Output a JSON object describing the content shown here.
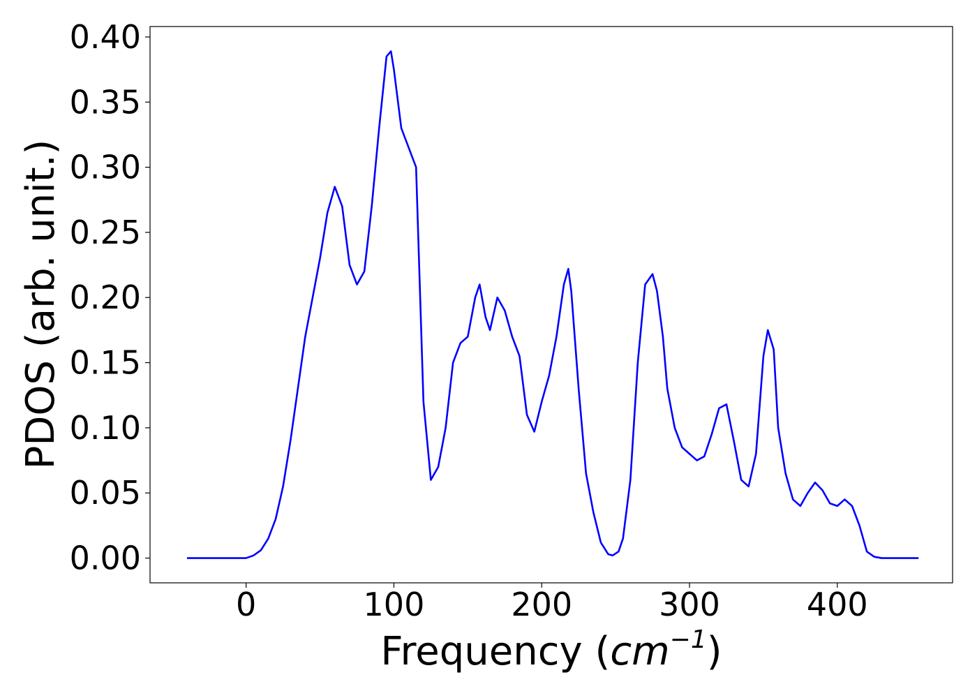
{
  "chart_data": {
    "type": "line",
    "title": "",
    "xlabel": {
      "prefix": "Frequency (",
      "var": "cm",
      "exp": "−1",
      "suffix": ")"
    },
    "ylabel": "PDOS (arb. unit.)",
    "xlim": [
      -65,
      478
    ],
    "ylim": [
      -0.019,
      0.408
    ],
    "xticks": [
      0,
      100,
      200,
      300,
      400
    ],
    "xtick_labels": [
      "0",
      "100",
      "200",
      "300",
      "400"
    ],
    "yticks": [
      0.0,
      0.05,
      0.1,
      0.15,
      0.2,
      0.25,
      0.3,
      0.35,
      0.4
    ],
    "ytick_labels": [
      "0.00",
      "0.05",
      "0.10",
      "0.15",
      "0.20",
      "0.25",
      "0.30",
      "0.35",
      "0.40"
    ],
    "grid": false,
    "legend": "none",
    "line_color": "#0000ff",
    "series": [
      {
        "x": [
          -40,
          -20,
          0,
          5,
          10,
          15,
          20,
          25,
          30,
          35,
          40,
          45,
          50,
          55,
          60,
          65,
          70,
          75,
          80,
          85,
          90,
          95,
          98,
          100,
          105,
          110,
          115,
          120,
          125,
          130,
          135,
          140,
          145,
          150,
          155,
          158,
          162,
          165,
          170,
          175,
          180,
          185,
          190,
          195,
          200,
          205,
          210,
          215,
          218,
          220,
          225,
          230,
          235,
          240,
          245,
          248,
          252,
          255,
          260,
          265,
          270,
          275,
          278,
          282,
          285,
          290,
          295,
          300,
          305,
          310,
          315,
          320,
          325,
          330,
          335,
          340,
          345,
          350,
          353,
          357,
          360,
          365,
          370,
          375,
          380,
          385,
          390,
          395,
          400,
          405,
          410,
          415,
          420,
          425,
          430,
          455
        ],
        "y": [
          0.0,
          0.0,
          0.0,
          0.002,
          0.006,
          0.015,
          0.03,
          0.055,
          0.09,
          0.13,
          0.17,
          0.2,
          0.23,
          0.265,
          0.285,
          0.27,
          0.225,
          0.21,
          0.22,
          0.27,
          0.33,
          0.385,
          0.389,
          0.375,
          0.33,
          0.315,
          0.3,
          0.12,
          0.06,
          0.07,
          0.1,
          0.15,
          0.165,
          0.17,
          0.2,
          0.21,
          0.185,
          0.175,
          0.2,
          0.19,
          0.17,
          0.155,
          0.11,
          0.097,
          0.12,
          0.14,
          0.17,
          0.21,
          0.222,
          0.205,
          0.13,
          0.065,
          0.035,
          0.012,
          0.003,
          0.002,
          0.005,
          0.015,
          0.06,
          0.15,
          0.21,
          0.218,
          0.205,
          0.17,
          0.13,
          0.1,
          0.085,
          0.08,
          0.075,
          0.078,
          0.095,
          0.115,
          0.118,
          0.09,
          0.06,
          0.055,
          0.08,
          0.155,
          0.175,
          0.16,
          0.1,
          0.065,
          0.045,
          0.04,
          0.05,
          0.058,
          0.052,
          0.042,
          0.04,
          0.045,
          0.04,
          0.025,
          0.005,
          0.001,
          0.0,
          0.0
        ]
      }
    ]
  }
}
